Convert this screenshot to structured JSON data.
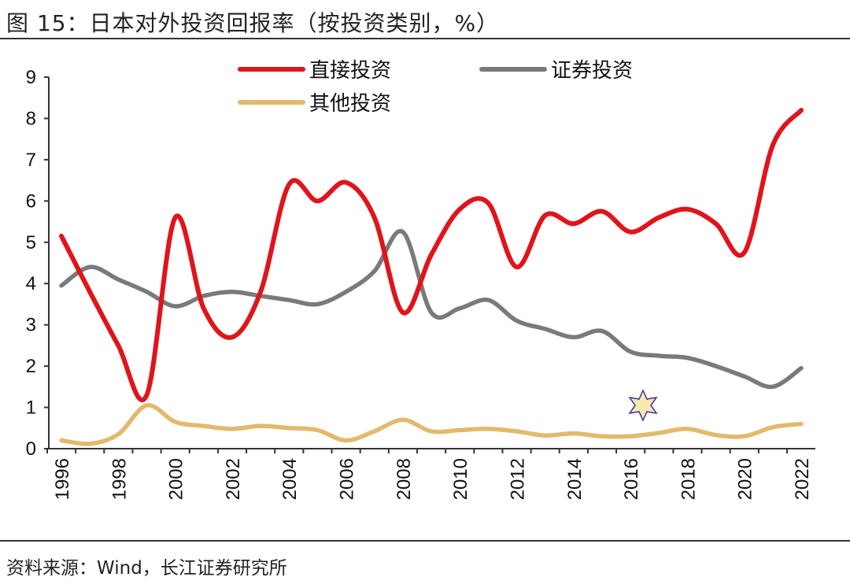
{
  "title": "图 15：日本对外投资回报率（按投资类别，%）",
  "source": "资料来源：Wind，长江证券研究所",
  "chart_data": {
    "type": "line",
    "title": "日本对外投资回报率（按投资类别，%）",
    "xlabel": "",
    "ylabel": "",
    "ylim": [
      0,
      9
    ],
    "yticks": [
      "0",
      "1",
      "2",
      "3",
      "4",
      "5",
      "6",
      "7",
      "8",
      "9"
    ],
    "xticks": [
      "1996",
      "1998",
      "2000",
      "2002",
      "2004",
      "2006",
      "2008",
      "2010",
      "2012",
      "2014",
      "2016",
      "2018",
      "2020",
      "2022"
    ],
    "x": [
      1996,
      1997,
      1998,
      1999,
      2000,
      2001,
      2002,
      2003,
      2004,
      2005,
      2006,
      2007,
      2008,
      2009,
      2010,
      2011,
      2012,
      2013,
      2014,
      2015,
      2016,
      2017,
      2018,
      2019,
      2020,
      2021,
      2022
    ],
    "legend_position": "top",
    "series": [
      {
        "name": "直接投资",
        "color": "#e0141b",
        "values": [
          5.15,
          3.8,
          2.5,
          1.3,
          5.6,
          3.4,
          2.7,
          3.8,
          6.4,
          6.0,
          6.45,
          5.6,
          3.3,
          4.7,
          5.8,
          5.95,
          4.4,
          5.65,
          5.45,
          5.75,
          5.25,
          5.6,
          5.8,
          5.45,
          4.75,
          7.35,
          8.2
        ]
      },
      {
        "name": "证券投资",
        "color": "#7a7a7a",
        "values": [
          3.95,
          4.4,
          4.1,
          3.8,
          3.45,
          3.7,
          3.8,
          3.7,
          3.6,
          3.5,
          3.8,
          4.3,
          5.25,
          3.3,
          3.4,
          3.6,
          3.1,
          2.9,
          2.7,
          2.85,
          2.35,
          2.25,
          2.2,
          2.0,
          1.75,
          1.5,
          1.95
        ]
      },
      {
        "name": "其他投资",
        "color": "#e3b96c",
        "values": [
          0.2,
          0.12,
          0.35,
          1.05,
          0.65,
          0.55,
          0.48,
          0.55,
          0.5,
          0.45,
          0.2,
          0.42,
          0.7,
          0.42,
          0.45,
          0.48,
          0.42,
          0.32,
          0.37,
          0.3,
          0.3,
          0.38,
          0.48,
          0.33,
          0.3,
          0.52,
          0.6
        ]
      }
    ]
  }
}
